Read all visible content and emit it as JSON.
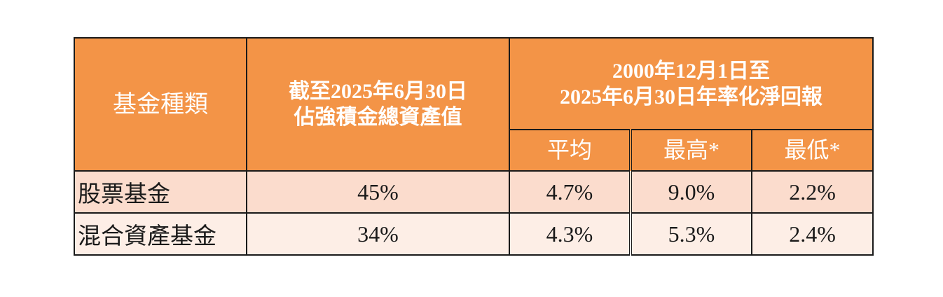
{
  "table": {
    "header": {
      "fund_type": "基金種類",
      "assets_line1": "截至2025年6月30日",
      "assets_line2": "佔強積金總資產值",
      "returns_line1": "2000年12月1日至",
      "returns_line2": "2025年6月30日年率化淨回報",
      "average": "平均",
      "highest": "最高*",
      "lowest": "最低*"
    },
    "rows": [
      {
        "fund": "股票基金",
        "share": "45%",
        "average": "4.7%",
        "highest": "9.0%",
        "lowest": "2.2%"
      },
      {
        "fund": "混合資產基金",
        "share": "34%",
        "average": "4.3%",
        "highest": "5.3%",
        "lowest": "2.4%"
      }
    ],
    "colors": {
      "header_bg": "#f39447",
      "row1_bg": "#fbdccd",
      "row2_bg": "#fdeee6"
    }
  }
}
